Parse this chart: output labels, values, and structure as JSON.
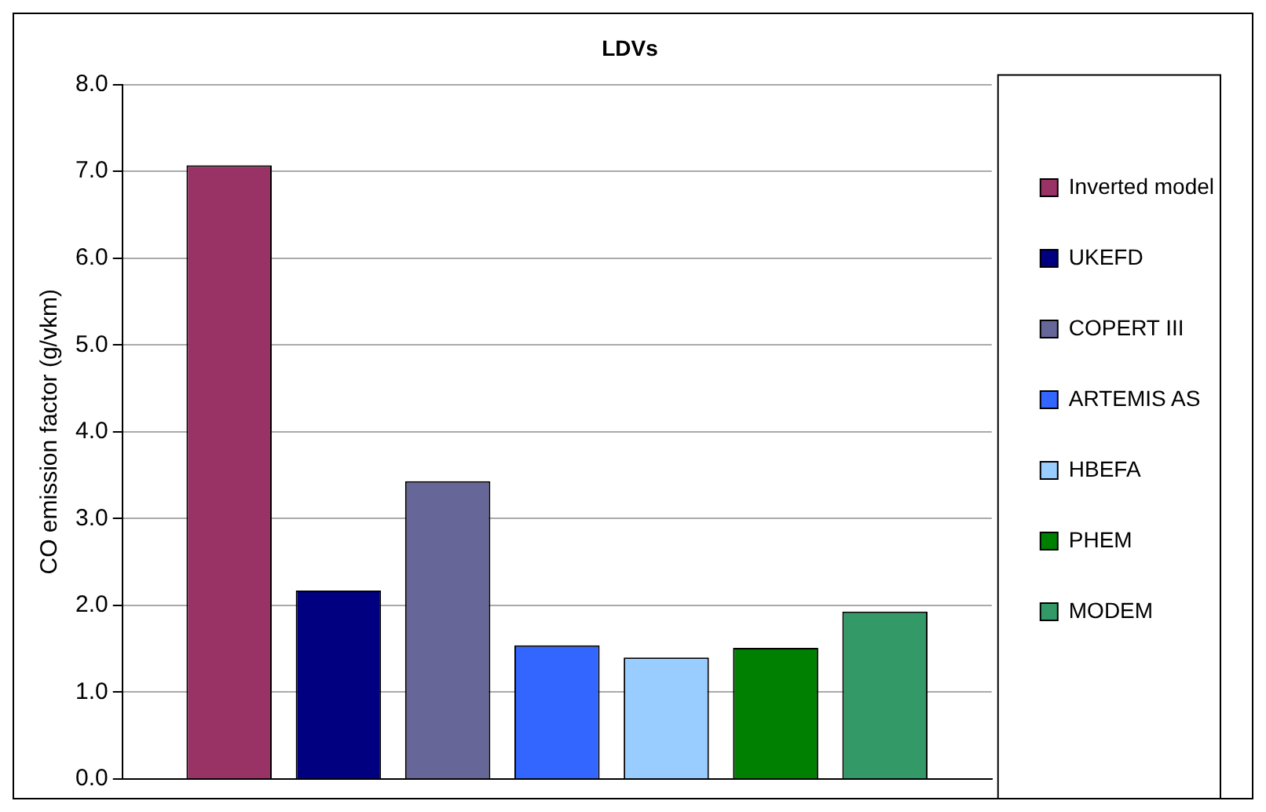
{
  "chart_data": {
    "type": "bar",
    "title": "LDVs",
    "ylabel": "CO emission factor (g/vkm)",
    "categories": [
      null
    ],
    "series": [
      {
        "name": "Inverted model",
        "color": "#993366",
        "values": [
          7.07
        ]
      },
      {
        "name": "UKEFD",
        "color": "#000080",
        "values": [
          2.17
        ]
      },
      {
        "name": "COPERT III",
        "color": "#666699",
        "values": [
          3.43
        ]
      },
      {
        "name": "ARTEMIS AS",
        "color": "#3366ff",
        "values": [
          1.54
        ]
      },
      {
        "name": "HBEFA",
        "color": "#99ccff",
        "values": [
          1.4
        ]
      },
      {
        "name": "PHEM",
        "color": "#008000",
        "values": [
          1.51
        ]
      },
      {
        "name": "MODEM",
        "color": "#339966",
        "values": [
          1.93
        ]
      }
    ],
    "ylim": [
      0,
      8
    ],
    "yticks": [
      {
        "value": 0,
        "label": "0.0"
      },
      {
        "value": 1,
        "label": "1.0"
      },
      {
        "value": 2,
        "label": "2.0"
      },
      {
        "value": 3,
        "label": "3.0"
      },
      {
        "value": 4,
        "label": "4.0"
      },
      {
        "value": 5,
        "label": "5.0"
      },
      {
        "value": 6,
        "label": "6.0"
      },
      {
        "value": 7,
        "label": "7.0"
      },
      {
        "value": 8,
        "label": "8.0"
      }
    ],
    "grid": "y",
    "legend": "right",
    "tick_labels": "y"
  }
}
